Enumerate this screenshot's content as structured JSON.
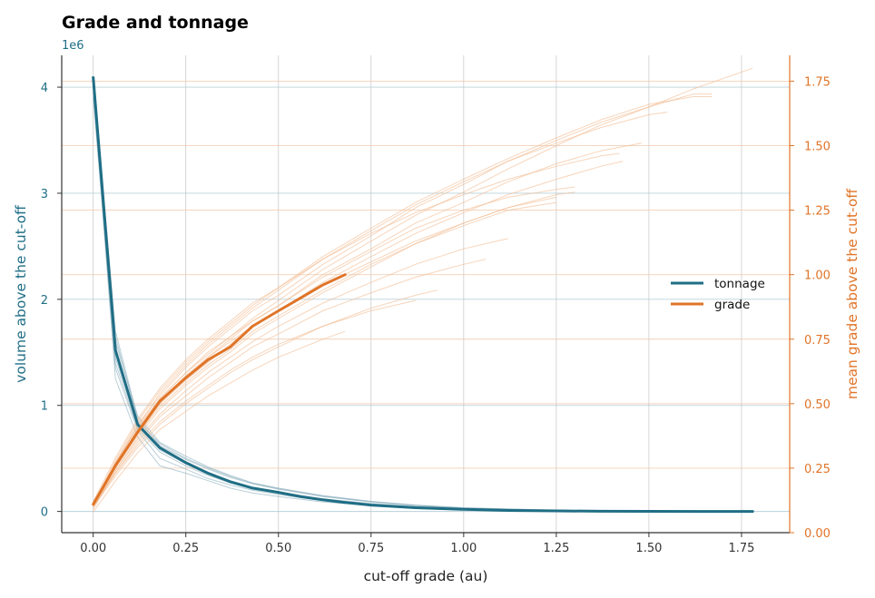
{
  "chart_data": {
    "type": "line",
    "title": "Grade and tonnage",
    "xlabel": "cut-off grade (au)",
    "ylabel_left": "volume above the cut-off",
    "ylabel_right": "mean grade above the cut-off",
    "left_axis_multiplier": "1e6",
    "xlim": [
      -0.085,
      1.88
    ],
    "ylim_left": [
      -200000,
      4300000
    ],
    "ylim_right": [
      0,
      1.85
    ],
    "x_ticks": [
      "0.00",
      "0.25",
      "0.50",
      "0.75",
      "1.00",
      "1.25",
      "1.50",
      "1.75"
    ],
    "left_ticks": [
      "0",
      "1",
      "2",
      "3",
      "4"
    ],
    "right_ticks": [
      "0.00",
      "0.25",
      "0.50",
      "0.75",
      "1.00",
      "1.25",
      "1.50",
      "1.75"
    ],
    "grid": true,
    "legend_position": "center-right",
    "colors": {
      "tonnage": "#1f6e85",
      "grade": "#e07428",
      "tonnage_light": "#7fa8b8",
      "grade_light": "#f2b98e"
    },
    "series": [
      {
        "name": "tonnage",
        "axis": "left",
        "x": [
          0.0,
          0.06,
          0.12,
          0.18,
          0.25,
          0.31,
          0.37,
          0.43,
          0.5,
          0.56,
          0.62,
          0.68,
          0.75,
          0.87,
          1.0,
          1.12,
          1.25,
          1.37,
          1.5,
          1.62,
          1.78
        ],
        "values": [
          4090000,
          1520000,
          820000,
          600000,
          460000,
          360000,
          280000,
          220000,
          180000,
          140000,
          110000,
          85000,
          60000,
          35000,
          20000,
          10000,
          5000,
          2000,
          1000,
          500,
          0
        ]
      },
      {
        "name": "grade",
        "axis": "right",
        "x": [
          0.0,
          0.06,
          0.12,
          0.18,
          0.25,
          0.31,
          0.37,
          0.43,
          0.5,
          0.56,
          0.62,
          0.68
        ],
        "values": [
          0.11,
          0.26,
          0.39,
          0.51,
          0.6,
          0.67,
          0.72,
          0.8,
          0.86,
          0.91,
          0.96,
          1.0
        ]
      }
    ],
    "realizations_tonnage": [
      {
        "x": [
          0,
          0.06,
          0.12,
          0.18,
          0.25,
          0.31,
          0.37,
          0.43,
          0.5,
          0.62,
          0.75,
          0.87,
          1.0,
          1.25,
          1.5,
          1.78
        ],
        "values": [
          3900000,
          1400000,
          780000,
          560000,
          430000,
          340000,
          270000,
          215000,
          170000,
          110000,
          65000,
          40000,
          22000,
          8000,
          2000,
          0
        ]
      },
      {
        "x": [
          0,
          0.06,
          0.12,
          0.18,
          0.25,
          0.31,
          0.37,
          0.43,
          0.5,
          0.62,
          0.75,
          0.87,
          1.0,
          1.25,
          1.5,
          1.78
        ],
        "values": [
          4000000,
          1250000,
          700000,
          430000,
          360000,
          290000,
          220000,
          175000,
          140000,
          90000,
          55000,
          32000,
          17000,
          6000,
          1500,
          0
        ]
      },
      {
        "x": [
          0,
          0.06,
          0.12,
          0.18,
          0.25,
          0.31,
          0.37,
          0.43,
          0.5,
          0.62,
          0.75,
          0.87,
          1.0,
          1.25,
          1.5,
          1.78
        ],
        "values": [
          4050000,
          1600000,
          900000,
          650000,
          520000,
          420000,
          340000,
          270000,
          220000,
          150000,
          95000,
          60000,
          35000,
          12000,
          3000,
          0
        ]
      },
      {
        "x": [
          0,
          0.06,
          0.12,
          0.18,
          0.25,
          0.31,
          0.37,
          0.43,
          0.5,
          0.62,
          0.75,
          0.87,
          1.0,
          1.25,
          1.5,
          1.78
        ],
        "values": [
          4100000,
          1700000,
          880000,
          620000,
          490000,
          400000,
          320000,
          260000,
          210000,
          140000,
          90000,
          55000,
          30000,
          10000,
          2500,
          0
        ]
      },
      {
        "x": [
          0,
          0.06,
          0.12,
          0.18,
          0.25,
          0.31,
          0.37,
          0.43,
          0.5,
          0.62,
          0.75,
          0.87,
          1.0,
          1.25,
          1.5,
          1.78
        ],
        "values": [
          3950000,
          1350000,
          760000,
          500000,
          400000,
          310000,
          250000,
          200000,
          160000,
          100000,
          62000,
          36000,
          20000,
          7000,
          1800,
          0
        ]
      },
      {
        "x": [
          0,
          0.06,
          0.12,
          0.18,
          0.25,
          0.31,
          0.37,
          0.43,
          0.5,
          0.62,
          0.75,
          0.87,
          1.0,
          1.25,
          1.5,
          1.78
        ],
        "values": [
          4080000,
          1650000,
          850000,
          640000,
          500000,
          410000,
          330000,
          265000,
          215000,
          145000,
          92000,
          58000,
          32000,
          11000,
          2800,
          0
        ]
      },
      {
        "x": [
          0,
          0.06,
          0.12,
          0.18,
          0.25,
          0.31,
          0.37,
          0.43,
          0.5,
          0.62,
          0.75,
          0.87,
          1.0,
          1.25,
          1.5,
          1.78
        ],
        "values": [
          4020000,
          1450000,
          800000,
          580000,
          450000,
          350000,
          275000,
          220000,
          175000,
          115000,
          70000,
          42000,
          24000,
          9000,
          2200,
          0
        ]
      },
      {
        "x": [
          0,
          0.06,
          0.12,
          0.18,
          0.25,
          0.31,
          0.37,
          0.43,
          0.5,
          0.62,
          0.75,
          0.87,
          1.0,
          1.25,
          1.5,
          1.78
        ],
        "values": [
          4060000,
          1550000,
          830000,
          610000,
          470000,
          370000,
          290000,
          230000,
          185000,
          120000,
          75000,
          45000,
          26000,
          9500,
          2400,
          0
        ]
      }
    ],
    "realizations_grade": [
      {
        "x": [
          0,
          0.06,
          0.12,
          0.18,
          0.25,
          0.31,
          0.37,
          0.43,
          0.5,
          0.62,
          0.75,
          0.87,
          1.0,
          1.12,
          1.25,
          1.37,
          1.5,
          1.62,
          1.78
        ],
        "values": [
          0.1,
          0.26,
          0.4,
          0.52,
          0.62,
          0.7,
          0.76,
          0.83,
          0.9,
          1.02,
          1.13,
          1.23,
          1.32,
          1.41,
          1.5,
          1.58,
          1.65,
          1.72,
          1.8
        ]
      },
      {
        "x": [
          0,
          0.06,
          0.12,
          0.18,
          0.25,
          0.31,
          0.37,
          0.43,
          0.5,
          0.62,
          0.75,
          0.87,
          1.0,
          1.12,
          1.25,
          1.37,
          1.5,
          1.62,
          1.67
        ],
        "values": [
          0.1,
          0.27,
          0.42,
          0.53,
          0.64,
          0.72,
          0.79,
          0.86,
          0.92,
          1.04,
          1.15,
          1.26,
          1.35,
          1.44,
          1.52,
          1.59,
          1.65,
          1.7,
          1.7
        ]
      },
      {
        "x": [
          0,
          0.06,
          0.12,
          0.18,
          0.25,
          0.31,
          0.37,
          0.43,
          0.5,
          0.62,
          0.75,
          0.87,
          1.0,
          1.12,
          1.25,
          1.37,
          1.5,
          1.62,
          1.67
        ],
        "values": [
          0.11,
          0.28,
          0.43,
          0.55,
          0.66,
          0.74,
          0.81,
          0.88,
          0.95,
          1.07,
          1.18,
          1.28,
          1.37,
          1.45,
          1.53,
          1.6,
          1.66,
          1.69,
          1.69
        ]
      },
      {
        "x": [
          0,
          0.06,
          0.12,
          0.18,
          0.25,
          0.31,
          0.37,
          0.43,
          0.5,
          0.62,
          0.75,
          0.87,
          1.0,
          1.12,
          1.25,
          1.37,
          1.48
        ],
        "values": [
          0.1,
          0.25,
          0.38,
          0.5,
          0.6,
          0.68,
          0.75,
          0.82,
          0.88,
          1.0,
          1.1,
          1.2,
          1.28,
          1.36,
          1.43,
          1.48,
          1.51
        ]
      },
      {
        "x": [
          0,
          0.06,
          0.12,
          0.18,
          0.25,
          0.31,
          0.37,
          0.43,
          0.5,
          0.62,
          0.75,
          0.87,
          1.0,
          1.12,
          1.25,
          1.37,
          1.43
        ],
        "values": [
          0.11,
          0.26,
          0.39,
          0.5,
          0.59,
          0.66,
          0.73,
          0.8,
          0.86,
          0.97,
          1.07,
          1.16,
          1.24,
          1.31,
          1.37,
          1.42,
          1.44
        ]
      },
      {
        "x": [
          0,
          0.06,
          0.12,
          0.18,
          0.25,
          0.31,
          0.37,
          0.43,
          0.5,
          0.62,
          0.75,
          0.87,
          1.0,
          1.12,
          1.25,
          1.3
        ],
        "values": [
          0.09,
          0.24,
          0.37,
          0.48,
          0.57,
          0.64,
          0.7,
          0.77,
          0.83,
          0.93,
          1.03,
          1.12,
          1.2,
          1.26,
          1.31,
          1.32
        ]
      },
      {
        "x": [
          0,
          0.06,
          0.12,
          0.18,
          0.25,
          0.31,
          0.37,
          0.43,
          0.5,
          0.62,
          0.75,
          0.87,
          1.0,
          1.12,
          1.25
        ],
        "values": [
          0.1,
          0.25,
          0.38,
          0.49,
          0.58,
          0.65,
          0.71,
          0.78,
          0.84,
          0.94,
          1.04,
          1.12,
          1.19,
          1.25,
          1.28
        ]
      },
      {
        "x": [
          0,
          0.06,
          0.12,
          0.18,
          0.25,
          0.31,
          0.37,
          0.43,
          0.5,
          0.62,
          0.75,
          0.87,
          1.0,
          1.12
        ],
        "values": [
          0.1,
          0.24,
          0.36,
          0.46,
          0.55,
          0.62,
          0.68,
          0.74,
          0.8,
          0.89,
          0.97,
          1.04,
          1.1,
          1.14
        ]
      },
      {
        "x": [
          0,
          0.06,
          0.12,
          0.18,
          0.25,
          0.31,
          0.37,
          0.43,
          0.5,
          0.62,
          0.75,
          0.87,
          1.0,
          1.06
        ],
        "values": [
          0.1,
          0.23,
          0.35,
          0.45,
          0.53,
          0.6,
          0.66,
          0.72,
          0.77,
          0.86,
          0.93,
          0.99,
          1.04,
          1.06
        ]
      },
      {
        "x": [
          0,
          0.06,
          0.12,
          0.18,
          0.25,
          0.31,
          0.37,
          0.43,
          0.5,
          0.62,
          0.75,
          0.87,
          0.93
        ],
        "values": [
          0.1,
          0.22,
          0.33,
          0.42,
          0.5,
          0.56,
          0.62,
          0.67,
          0.72,
          0.8,
          0.87,
          0.92,
          0.94
        ]
      },
      {
        "x": [
          0,
          0.06,
          0.12,
          0.18,
          0.25,
          0.31,
          0.37,
          0.43,
          0.5,
          0.62,
          0.75,
          0.87
        ],
        "values": [
          0.11,
          0.23,
          0.34,
          0.43,
          0.51,
          0.57,
          0.63,
          0.68,
          0.73,
          0.8,
          0.86,
          0.9
        ]
      },
      {
        "x": [
          0,
          0.06,
          0.12,
          0.18,
          0.25,
          0.31,
          0.37,
          0.43,
          0.5,
          0.62,
          0.68
        ],
        "values": [
          0.08,
          0.2,
          0.31,
          0.4,
          0.47,
          0.53,
          0.58,
          0.63,
          0.68,
          0.75,
          0.78
        ]
      },
      {
        "x": [
          0,
          0.06,
          0.12,
          0.18,
          0.25,
          0.31,
          0.37,
          0.43,
          0.5,
          0.62,
          0.75,
          0.87,
          1.0,
          1.12,
          1.25,
          1.37,
          1.5,
          1.55
        ],
        "values": [
          0.1,
          0.27,
          0.41,
          0.54,
          0.65,
          0.73,
          0.8,
          0.87,
          0.94,
          1.06,
          1.17,
          1.27,
          1.36,
          1.44,
          1.51,
          1.57,
          1.62,
          1.63
        ]
      },
      {
        "x": [
          0,
          0.06,
          0.12,
          0.18,
          0.25,
          0.31,
          0.37,
          0.43,
          0.5,
          0.62,
          0.75,
          0.87,
          1.0,
          1.12,
          1.25,
          1.37,
          1.42
        ],
        "values": [
          0.12,
          0.29,
          0.44,
          0.56,
          0.67,
          0.75,
          0.82,
          0.89,
          0.95,
          1.06,
          1.16,
          1.24,
          1.31,
          1.37,
          1.42,
          1.46,
          1.47
        ]
      },
      {
        "x": [
          0,
          0.06,
          0.12,
          0.18,
          0.25,
          0.31,
          0.37,
          0.43,
          0.5,
          0.62,
          0.75,
          0.87,
          1.0,
          1.12,
          1.25,
          1.3
        ],
        "values": [
          0.11,
          0.27,
          0.41,
          0.52,
          0.62,
          0.69,
          0.76,
          0.82,
          0.88,
          0.99,
          1.09,
          1.18,
          1.25,
          1.3,
          1.33,
          1.34
        ]
      },
      {
        "x": [
          0,
          0.06,
          0.12,
          0.18,
          0.25,
          0.31,
          0.37,
          0.43,
          0.5,
          0.62,
          0.75,
          0.87,
          1.0,
          1.12,
          1.25
        ],
        "values": [
          0.1,
          0.26,
          0.4,
          0.51,
          0.61,
          0.68,
          0.74,
          0.8,
          0.86,
          0.96,
          1.05,
          1.13,
          1.2,
          1.26,
          1.3
        ]
      }
    ]
  }
}
